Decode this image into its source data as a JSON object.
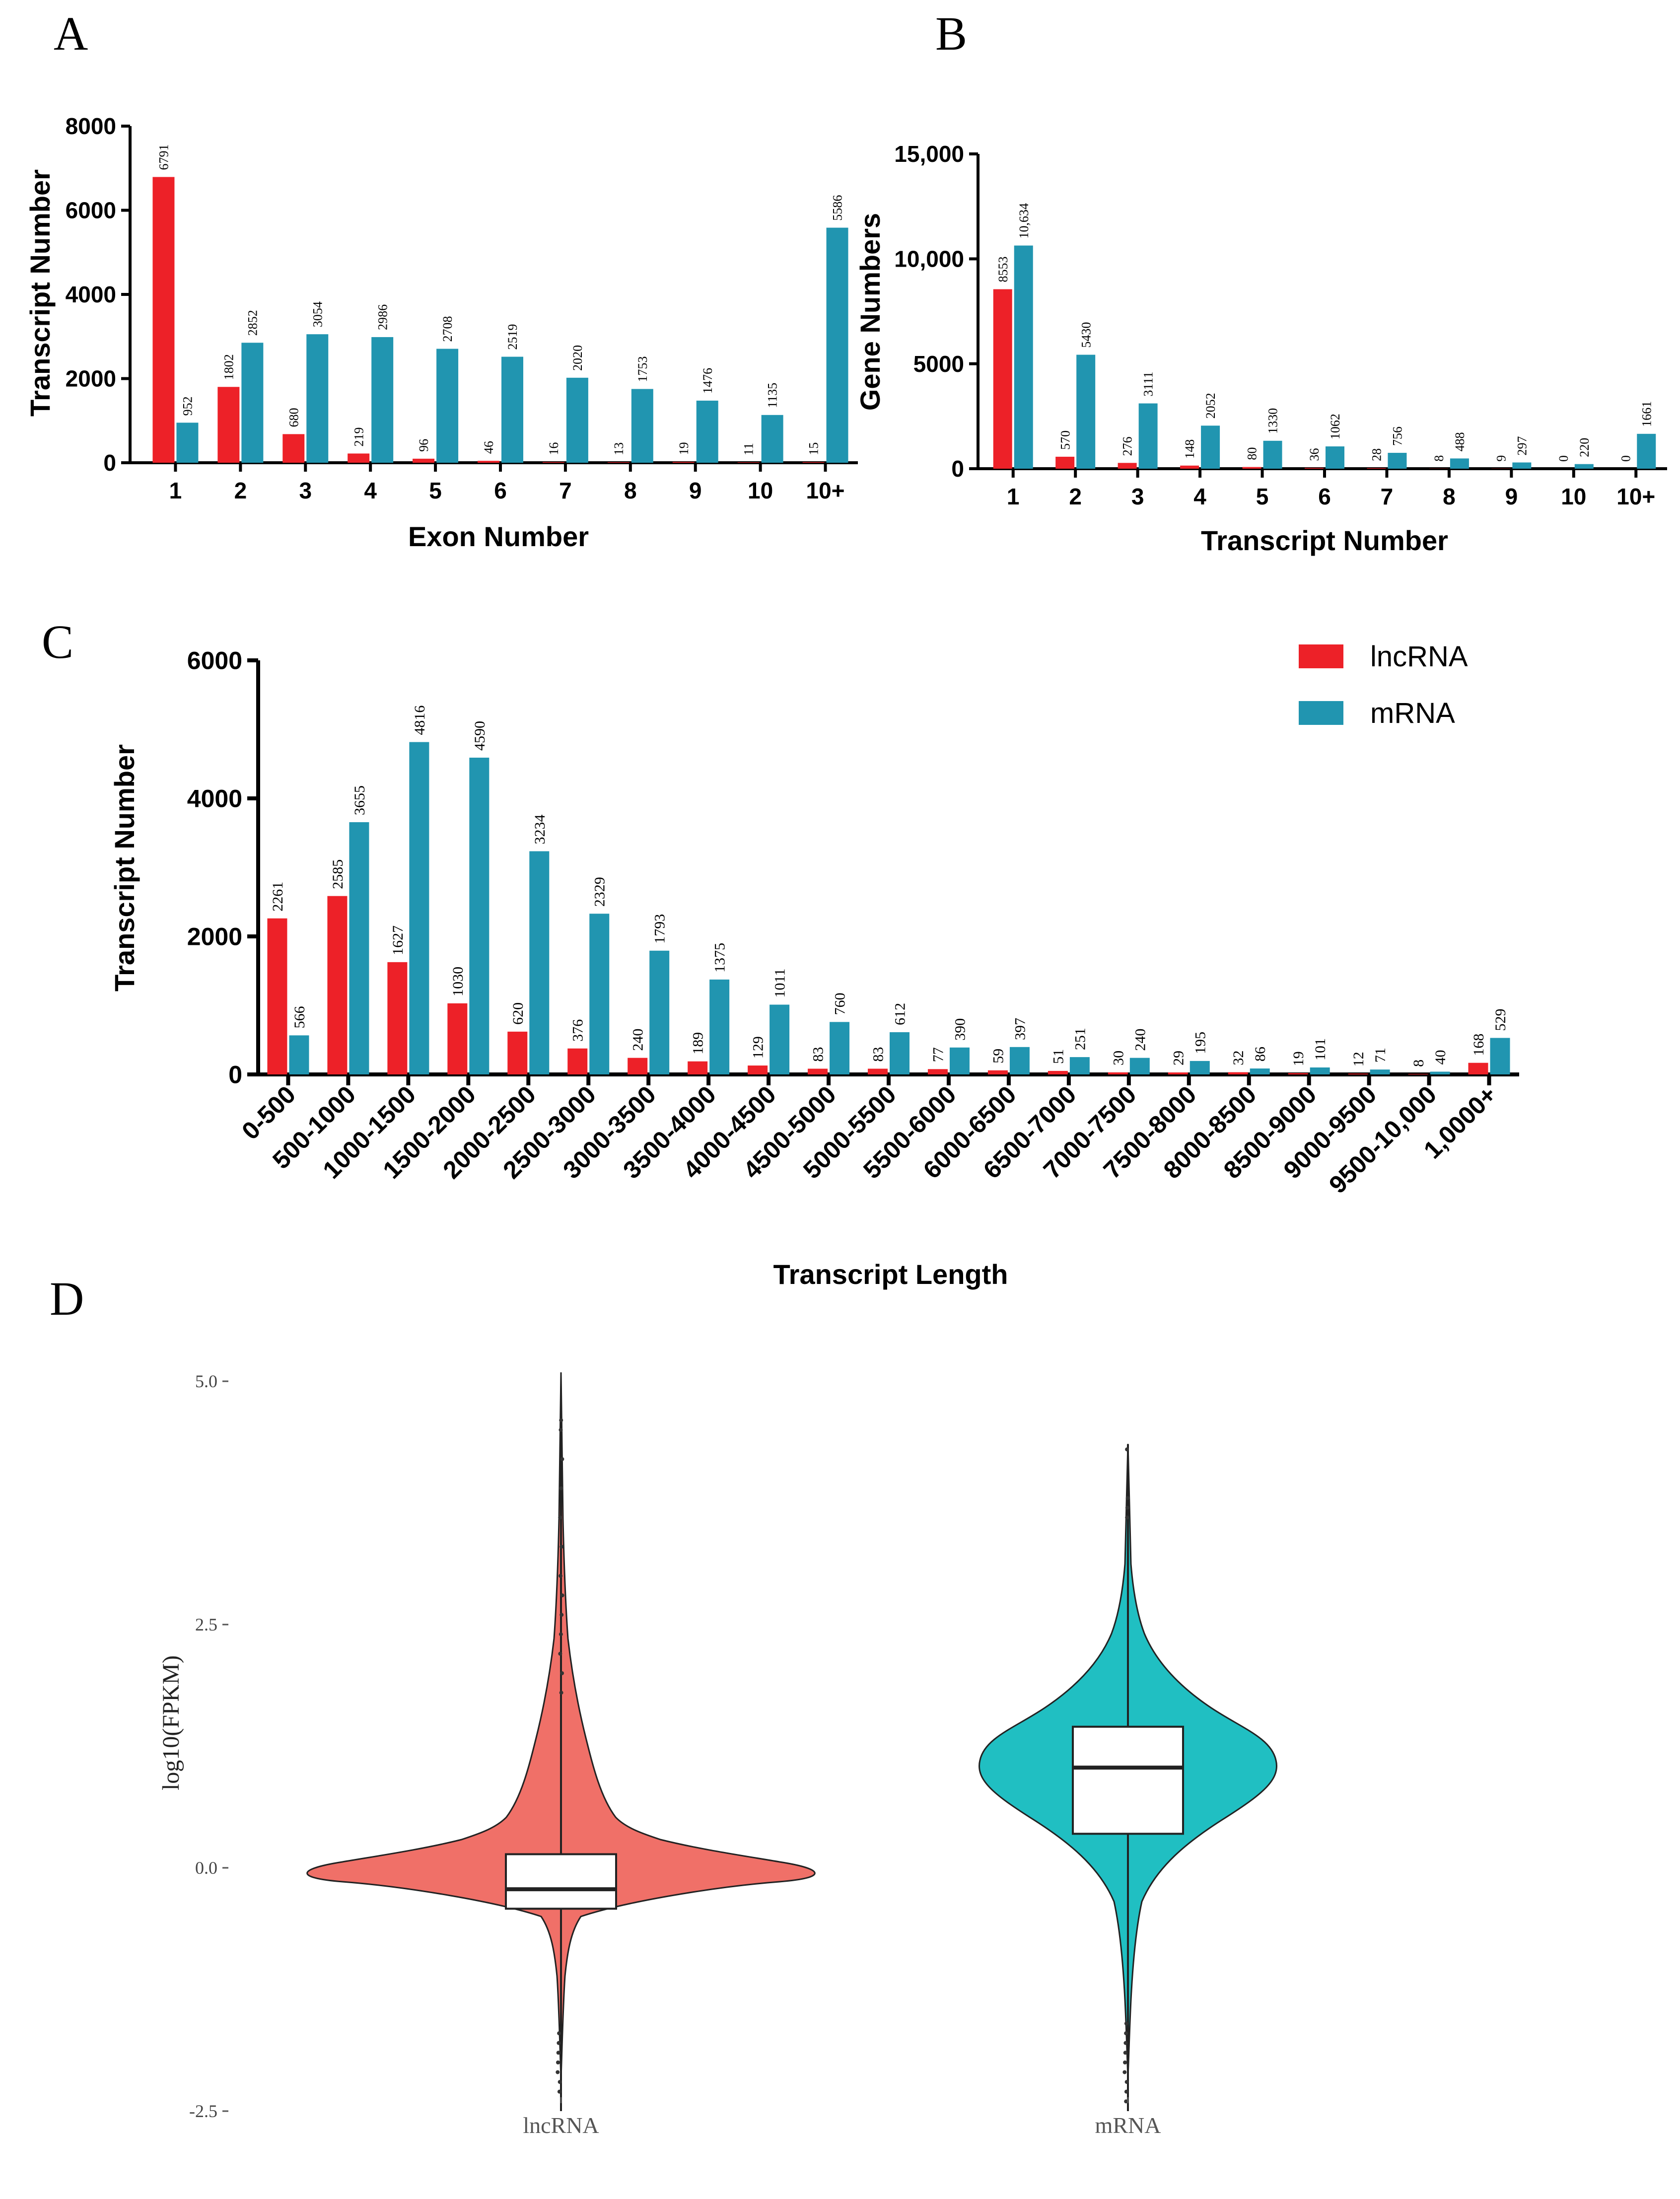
{
  "panels": {
    "a_letter": "A",
    "b_letter": "B",
    "c_letter": "C",
    "d_letter": "D"
  },
  "colors": {
    "lncRNA": "#ed2128",
    "mRNA": "#2195b0",
    "violin_lnc": "#f07068",
    "violin_mrna": "#20bfc2"
  },
  "legend": {
    "lncRNA": "lncRNA",
    "mRNA": "mRNA"
  },
  "chart_data": [
    {
      "id": "A",
      "type": "bar",
      "categories": [
        "1",
        "2",
        "3",
        "4",
        "5",
        "6",
        "7",
        "8",
        "9",
        "10",
        "10+"
      ],
      "series": [
        {
          "name": "lncRNA",
          "values": [
            6791,
            1802,
            680,
            219,
            96,
            46,
            16,
            13,
            19,
            11,
            15
          ]
        },
        {
          "name": "mRNA",
          "values": [
            952,
            2852,
            3054,
            2986,
            2708,
            2519,
            2020,
            1753,
            1476,
            1135,
            5586
          ]
        }
      ],
      "xlabel": "Exon Number",
      "ylabel": "Transcript Number",
      "ylim": [
        0,
        8000
      ],
      "yticks": [
        "0",
        "2000",
        "4000",
        "6000",
        "8000"
      ]
    },
    {
      "id": "B",
      "type": "bar",
      "categories": [
        "1",
        "2",
        "3",
        "4",
        "5",
        "6",
        "7",
        "8",
        "9",
        "10",
        "10+"
      ],
      "series": [
        {
          "name": "lncRNA",
          "values": [
            8553,
            570,
            276,
            148,
            80,
            36,
            28,
            8,
            9,
            0,
            0
          ]
        },
        {
          "name": "mRNA",
          "values": [
            10634,
            5430,
            3111,
            2052,
            1330,
            1062,
            756,
            488,
            297,
            220,
            1661
          ]
        }
      ],
      "value_labels": {
        "lncRNA": [
          "8553",
          "570",
          "276",
          "148",
          "80",
          "36",
          "28",
          "8",
          "9",
          "0",
          "0"
        ],
        "mRNA": [
          "10,634",
          "5430",
          "3111",
          "2052",
          "1330",
          "1062",
          "756",
          "488",
          "297",
          "220",
          "1661"
        ]
      },
      "xlabel": "Transcript Number",
      "ylabel": "Gene Numbers",
      "ylim": [
        0,
        15000
      ],
      "yticks": [
        "0",
        "5000",
        "10,000",
        "15,000"
      ]
    },
    {
      "id": "C",
      "type": "bar",
      "categories": [
        "0-500",
        "500-1000",
        "1000-1500",
        "1500-2000",
        "2000-2500",
        "2500-3000",
        "3000-3500",
        "3500-4000",
        "4000-4500",
        "4500-5000",
        "5000-5500",
        "5500-6000",
        "6000-6500",
        "6500-7000",
        "7000-7500",
        "7500-8000",
        "8000-8500",
        "8500-9000",
        "9000-9500",
        "9500-10,000",
        "1,0000+"
      ],
      "series": [
        {
          "name": "lncRNA",
          "values": [
            2261,
            2585,
            1627,
            1030,
            620,
            376,
            240,
            189,
            129,
            83,
            83,
            77,
            59,
            51,
            30,
            29,
            32,
            19,
            12,
            8,
            168
          ]
        },
        {
          "name": "mRNA",
          "values": [
            566,
            3655,
            4816,
            4590,
            3234,
            2329,
            1793,
            1375,
            1011,
            760,
            612,
            390,
            397,
            251,
            240,
            195,
            86,
            101,
            71,
            40,
            529
          ]
        }
      ],
      "xlabel": "Transcript Length",
      "ylabel": "Transcript Number",
      "ylim": [
        0,
        6000
      ],
      "yticks": [
        "0",
        "2000",
        "4000",
        "6000"
      ],
      "legend": "top-right"
    },
    {
      "id": "D",
      "type": "violin",
      "categories": [
        "lncRNA",
        "mRNA"
      ],
      "ylabel": "log10(FPKM)",
      "ylim": [
        -2.5,
        5.0
      ],
      "yticks": [
        "5.0",
        "2.5",
        "0.0",
        "-2.5"
      ],
      "box": [
        {
          "name": "lncRNA",
          "q1": -0.42,
          "median": -0.22,
          "q3": 0.14,
          "min": -2.5,
          "max": 4.7
        },
        {
          "name": "mRNA",
          "q1": 0.35,
          "median": 1.03,
          "q3": 1.45,
          "min": -2.5,
          "max": 4.35
        }
      ]
    }
  ]
}
